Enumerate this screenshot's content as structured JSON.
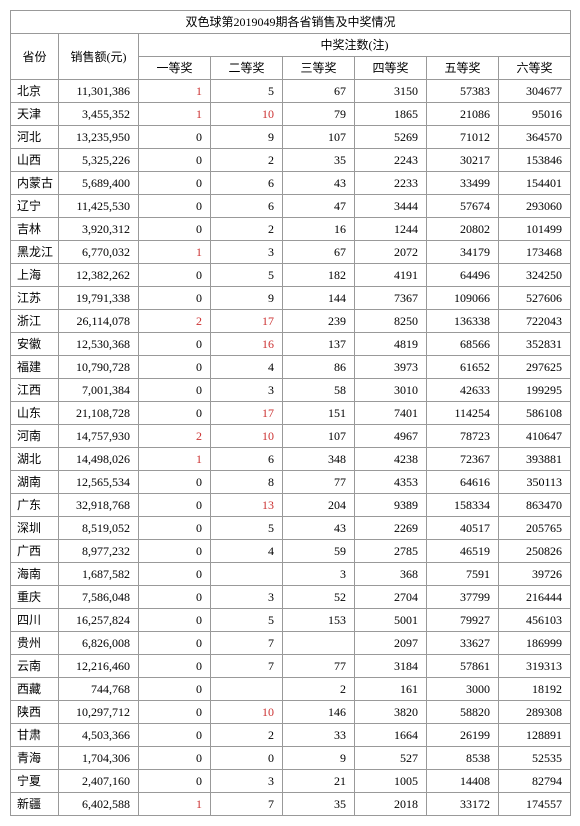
{
  "title": "双色球第2019049期各省销售及中奖情况",
  "headers": {
    "province": "省份",
    "sales": "销售额(元)",
    "prize_group": "中奖注数(注)",
    "prizes": [
      "一等奖",
      "二等奖",
      "三等奖",
      "四等奖",
      "五等奖",
      "六等奖"
    ]
  },
  "rows": [
    {
      "province": "北京",
      "sales": "11,301,386",
      "p1": "1",
      "p1r": true,
      "p2": "5",
      "p2r": false,
      "p3": "67",
      "p4": "3150",
      "p5": "57383",
      "p6": "304677"
    },
    {
      "province": "天津",
      "sales": "3,455,352",
      "p1": "1",
      "p1r": true,
      "p2": "10",
      "p2r": true,
      "p3": "79",
      "p4": "1865",
      "p5": "21086",
      "p6": "95016"
    },
    {
      "province": "河北",
      "sales": "13,235,950",
      "p1": "0",
      "p1r": false,
      "p2": "9",
      "p2r": false,
      "p3": "107",
      "p4": "5269",
      "p5": "71012",
      "p6": "364570"
    },
    {
      "province": "山西",
      "sales": "5,325,226",
      "p1": "0",
      "p1r": false,
      "p2": "2",
      "p2r": false,
      "p3": "35",
      "p4": "2243",
      "p5": "30217",
      "p6": "153846"
    },
    {
      "province": "内蒙古",
      "sales": "5,689,400",
      "p1": "0",
      "p1r": false,
      "p2": "6",
      "p2r": false,
      "p3": "43",
      "p4": "2233",
      "p5": "33499",
      "p6": "154401"
    },
    {
      "province": "辽宁",
      "sales": "11,425,530",
      "p1": "0",
      "p1r": false,
      "p2": "6",
      "p2r": false,
      "p3": "47",
      "p4": "3444",
      "p5": "57674",
      "p6": "293060"
    },
    {
      "province": "吉林",
      "sales": "3,920,312",
      "p1": "0",
      "p1r": false,
      "p2": "2",
      "p2r": false,
      "p3": "16",
      "p4": "1244",
      "p5": "20802",
      "p6": "101499"
    },
    {
      "province": "黑龙江",
      "sales": "6,770,032",
      "p1": "1",
      "p1r": true,
      "p2": "3",
      "p2r": false,
      "p3": "67",
      "p4": "2072",
      "p5": "34179",
      "p6": "173468"
    },
    {
      "province": "上海",
      "sales": "12,382,262",
      "p1": "0",
      "p1r": false,
      "p2": "5",
      "p2r": false,
      "p3": "182",
      "p4": "4191",
      "p5": "64496",
      "p6": "324250"
    },
    {
      "province": "江苏",
      "sales": "19,791,338",
      "p1": "0",
      "p1r": false,
      "p2": "9",
      "p2r": false,
      "p3": "144",
      "p4": "7367",
      "p5": "109066",
      "p6": "527606"
    },
    {
      "province": "浙江",
      "sales": "26,114,078",
      "p1": "2",
      "p1r": true,
      "p2": "17",
      "p2r": true,
      "p3": "239",
      "p4": "8250",
      "p5": "136338",
      "p6": "722043"
    },
    {
      "province": "安徽",
      "sales": "12,530,368",
      "p1": "0",
      "p1r": false,
      "p2": "16",
      "p2r": true,
      "p3": "137",
      "p4": "4819",
      "p5": "68566",
      "p6": "352831"
    },
    {
      "province": "福建",
      "sales": "10,790,728",
      "p1": "0",
      "p1r": false,
      "p2": "4",
      "p2r": false,
      "p3": "86",
      "p4": "3973",
      "p5": "61652",
      "p6": "297625"
    },
    {
      "province": "江西",
      "sales": "7,001,384",
      "p1": "0",
      "p1r": false,
      "p2": "3",
      "p2r": false,
      "p3": "58",
      "p4": "3010",
      "p5": "42633",
      "p6": "199295"
    },
    {
      "province": "山东",
      "sales": "21,108,728",
      "p1": "0",
      "p1r": false,
      "p2": "17",
      "p2r": true,
      "p3": "151",
      "p4": "7401",
      "p5": "114254",
      "p6": "586108"
    },
    {
      "province": "河南",
      "sales": "14,757,930",
      "p1": "2",
      "p1r": true,
      "p2": "10",
      "p2r": true,
      "p3": "107",
      "p4": "4967",
      "p5": "78723",
      "p6": "410647"
    },
    {
      "province": "湖北",
      "sales": "14,498,026",
      "p1": "1",
      "p1r": true,
      "p2": "6",
      "p2r": false,
      "p3": "348",
      "p4": "4238",
      "p5": "72367",
      "p6": "393881"
    },
    {
      "province": "湖南",
      "sales": "12,565,534",
      "p1": "0",
      "p1r": false,
      "p2": "8",
      "p2r": false,
      "p3": "77",
      "p4": "4353",
      "p5": "64616",
      "p6": "350113"
    },
    {
      "province": "广东",
      "sales": "32,918,768",
      "p1": "0",
      "p1r": false,
      "p2": "13",
      "p2r": true,
      "p3": "204",
      "p4": "9389",
      "p5": "158334",
      "p6": "863470"
    },
    {
      "province": "深圳",
      "sales": "8,519,052",
      "p1": "0",
      "p1r": false,
      "p2": "5",
      "p2r": false,
      "p3": "43",
      "p4": "2269",
      "p5": "40517",
      "p6": "205765"
    },
    {
      "province": "广西",
      "sales": "8,977,232",
      "p1": "0",
      "p1r": false,
      "p2": "4",
      "p2r": false,
      "p3": "59",
      "p4": "2785",
      "p5": "46519",
      "p6": "250826"
    },
    {
      "province": "海南",
      "sales": "1,687,582",
      "p1": "0",
      "p1r": false,
      "p2": "",
      "p2r": false,
      "p3": "3",
      "p4": "368",
      "p5": "7591",
      "p6": "39726"
    },
    {
      "province": "重庆",
      "sales": "7,586,048",
      "p1": "0",
      "p1r": false,
      "p2": "3",
      "p2r": false,
      "p3": "52",
      "p4": "2704",
      "p5": "37799",
      "p6": "216444"
    },
    {
      "province": "四川",
      "sales": "16,257,824",
      "p1": "0",
      "p1r": false,
      "p2": "5",
      "p2r": false,
      "p3": "153",
      "p4": "5001",
      "p5": "79927",
      "p6": "456103"
    },
    {
      "province": "贵州",
      "sales": "6,826,008",
      "p1": "0",
      "p1r": false,
      "p2": "7",
      "p2r": false,
      "p3": "",
      "p4": "2097",
      "p5": "33627",
      "p6": "186999"
    },
    {
      "province": "云南",
      "sales": "12,216,460",
      "p1": "0",
      "p1r": false,
      "p2": "7",
      "p2r": false,
      "p3": "77",
      "p4": "3184",
      "p5": "57861",
      "p6": "319313"
    },
    {
      "province": "西藏",
      "sales": "744,768",
      "p1": "0",
      "p1r": false,
      "p2": "",
      "p2r": false,
      "p3": "2",
      "p4": "161",
      "p5": "3000",
      "p6": "18192"
    },
    {
      "province": "陕西",
      "sales": "10,297,712",
      "p1": "0",
      "p1r": false,
      "p2": "10",
      "p2r": true,
      "p3": "146",
      "p4": "3820",
      "p5": "58820",
      "p6": "289308"
    },
    {
      "province": "甘肃",
      "sales": "4,503,366",
      "p1": "0",
      "p1r": false,
      "p2": "2",
      "p2r": false,
      "p3": "33",
      "p4": "1664",
      "p5": "26199",
      "p6": "128891"
    },
    {
      "province": "青海",
      "sales": "1,704,306",
      "p1": "0",
      "p1r": false,
      "p2": "0",
      "p2r": false,
      "p3": "9",
      "p4": "527",
      "p5": "8538",
      "p6": "52535"
    },
    {
      "province": "宁夏",
      "sales": "2,407,160",
      "p1": "0",
      "p1r": false,
      "p2": "3",
      "p2r": false,
      "p3": "21",
      "p4": "1005",
      "p5": "14408",
      "p6": "82794"
    },
    {
      "province": "新疆",
      "sales": "6,402,588",
      "p1": "1",
      "p1r": true,
      "p2": "7",
      "p2r": false,
      "p3": "35",
      "p4": "2018",
      "p5": "33172",
      "p6": "174557"
    }
  ]
}
